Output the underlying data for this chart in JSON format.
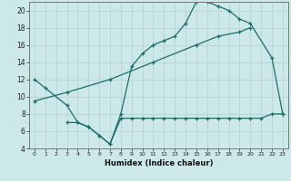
{
  "xlabel": "Humidex (Indice chaleur)",
  "bg_color": "#cce8e8",
  "line_color": "#1a6e6a",
  "grid_color": "#b8d8d8",
  "xlim": [
    -0.5,
    23.5
  ],
  "ylim": [
    4,
    21
  ],
  "yticks": [
    4,
    6,
    8,
    10,
    12,
    14,
    16,
    18,
    20
  ],
  "xticks": [
    0,
    1,
    2,
    3,
    4,
    5,
    6,
    7,
    8,
    9,
    10,
    11,
    12,
    13,
    14,
    15,
    16,
    17,
    18,
    19,
    20,
    21,
    22,
    23
  ],
  "line1_x": [
    0,
    1,
    3,
    4,
    5,
    6,
    7,
    8,
    9,
    10,
    11,
    12,
    13,
    14,
    15,
    16,
    17,
    18,
    19,
    20,
    22,
    23
  ],
  "line1_y": [
    12,
    11,
    9,
    7,
    6.5,
    5.5,
    4.5,
    8,
    13.5,
    15,
    16,
    16.5,
    17,
    18.5,
    21,
    21,
    20.5,
    20,
    19,
    18.5,
    14.5,
    8
  ],
  "line2_x": [
    0,
    3,
    7,
    11,
    15,
    17,
    19,
    20
  ],
  "line2_y": [
    9.5,
    10.5,
    12,
    14,
    16,
    17,
    17.5,
    18
  ],
  "line3_x": [
    3,
    4,
    5,
    6,
    7,
    8,
    9,
    10,
    11,
    12,
    13,
    14,
    15,
    16,
    17,
    18,
    19,
    20,
    21,
    22,
    23
  ],
  "line3_y": [
    7,
    7,
    6.5,
    5.5,
    4.5,
    7.5,
    7.5,
    7.5,
    7.5,
    7.5,
    7.5,
    7.5,
    7.5,
    7.5,
    7.5,
    7.5,
    7.5,
    7.5,
    7.5,
    8,
    8
  ]
}
